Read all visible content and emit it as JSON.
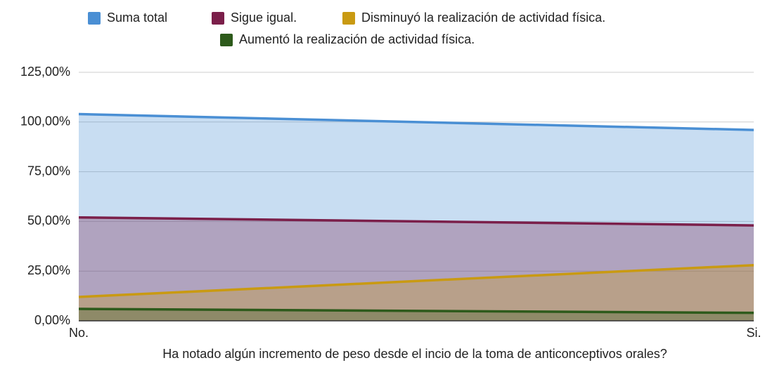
{
  "chart_data": {
    "type": "area",
    "x_label": "Ha notado algún incremento de peso desde el incio de la toma de anticonceptivos orales?",
    "categories": [
      "No.",
      "Si."
    ],
    "series": [
      {
        "name": "Suma total",
        "color": "#4a8fd4",
        "values": [
          104,
          96
        ]
      },
      {
        "name": "Sigue igual.",
        "color": "#7b1f4a",
        "values": [
          52,
          48
        ]
      },
      {
        "name": "Disminuyó la realización de actividad física.",
        "color": "#c99a12",
        "values": [
          12,
          28
        ]
      },
      {
        "name": "Aumentó la realización de actividad física.",
        "color": "#2d5a1b",
        "values": [
          6,
          4
        ]
      }
    ],
    "ylim": [
      0,
      125
    ],
    "yticks": [
      {
        "value": 0,
        "label": "0,00%"
      },
      {
        "value": 25,
        "label": "25,00%"
      },
      {
        "value": 50,
        "label": "50,00%"
      },
      {
        "value": 75,
        "label": "75,00%"
      },
      {
        "value": 100,
        "label": "100,00%"
      },
      {
        "value": 125,
        "label": "125,00%"
      }
    ],
    "grid": true,
    "legend": "top"
  }
}
